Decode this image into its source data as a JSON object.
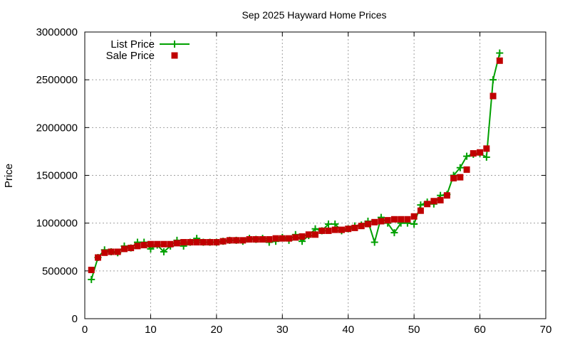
{
  "chart_data": {
    "type": "line",
    "title": "Sep 2025 Hayward Home Prices",
    "xlabel": "",
    "ylabel": "Price",
    "xlim": [
      0,
      70
    ],
    "ylim": [
      0,
      3000000
    ],
    "xticks": [
      0,
      10,
      20,
      30,
      40,
      50,
      60,
      70
    ],
    "yticks": [
      0,
      500000,
      1000000,
      1500000,
      2000000,
      2500000,
      3000000
    ],
    "grid": true,
    "legend_position": "top-left",
    "series": [
      {
        "name": "List Price",
        "style": "lines+points",
        "marker": "plus",
        "color": "#00a000",
        "x": [
          1,
          2,
          3,
          4,
          5,
          6,
          7,
          8,
          9,
          10,
          11,
          12,
          13,
          14,
          15,
          16,
          17,
          18,
          19,
          20,
          21,
          22,
          23,
          24,
          25,
          26,
          27,
          28,
          29,
          30,
          31,
          32,
          33,
          34,
          35,
          36,
          37,
          38,
          39,
          40,
          41,
          42,
          43,
          44,
          45,
          46,
          47,
          48,
          49,
          50,
          51,
          52,
          53,
          54,
          55,
          56,
          57,
          58,
          59,
          60,
          61,
          62,
          63
        ],
        "y": [
          410000,
          640000,
          720000,
          700000,
          690000,
          760000,
          740000,
          800000,
          800000,
          730000,
          770000,
          700000,
          760000,
          820000,
          760000,
          800000,
          840000,
          800000,
          800000,
          800000,
          810000,
          820000,
          820000,
          810000,
          840000,
          830000,
          840000,
          800000,
          810000,
          850000,
          820000,
          880000,
          810000,
          870000,
          940000,
          920000,
          990000,
          990000,
          920000,
          940000,
          970000,
          980000,
          1020000,
          800000,
          1060000,
          1000000,
          900000,
          1000000,
          1000000,
          990000,
          1190000,
          1220000,
          1200000,
          1290000,
          1300000,
          1500000,
          1580000,
          1700000,
          1720000,
          1730000,
          1690000,
          2500000,
          2780000
        ]
      },
      {
        "name": "Sale Price",
        "style": "points",
        "marker": "square",
        "color": "#c00000",
        "x": [
          1,
          2,
          3,
          4,
          5,
          6,
          7,
          8,
          9,
          10,
          11,
          12,
          13,
          14,
          15,
          16,
          17,
          18,
          19,
          20,
          21,
          22,
          23,
          24,
          25,
          26,
          27,
          28,
          29,
          30,
          31,
          32,
          33,
          34,
          35,
          36,
          37,
          38,
          39,
          40,
          41,
          42,
          43,
          44,
          45,
          46,
          47,
          48,
          49,
          50,
          51,
          52,
          53,
          54,
          55,
          56,
          57,
          58,
          59,
          60,
          61,
          62,
          63
        ],
        "y": [
          510000,
          640000,
          690000,
          700000,
          700000,
          730000,
          740000,
          760000,
          770000,
          780000,
          780000,
          780000,
          780000,
          790000,
          800000,
          800000,
          800000,
          800000,
          800000,
          800000,
          810000,
          820000,
          820000,
          820000,
          830000,
          830000,
          830000,
          830000,
          840000,
          840000,
          840000,
          850000,
          860000,
          880000,
          880000,
          920000,
          920000,
          930000,
          930000,
          940000,
          950000,
          970000,
          990000,
          1010000,
          1020000,
          1030000,
          1040000,
          1040000,
          1040000,
          1070000,
          1130000,
          1200000,
          1230000,
          1240000,
          1290000,
          1470000,
          1480000,
          1560000,
          1730000,
          1740000,
          1780000,
          2330000,
          2700000
        ]
      }
    ]
  }
}
